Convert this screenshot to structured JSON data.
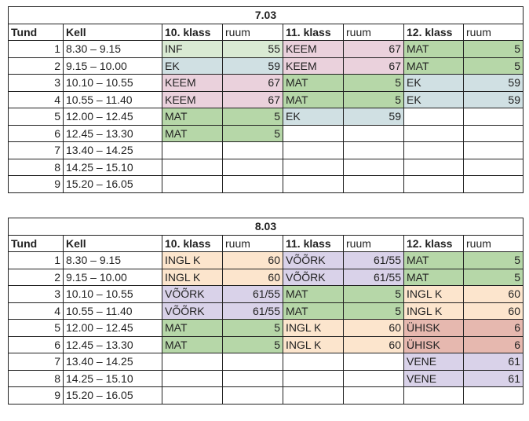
{
  "tables": [
    {
      "date": "7.03",
      "header": {
        "tund": "Tund",
        "kell": "Kell",
        "k10": "10. klass",
        "k11": "11. klass",
        "k12": "12. klass",
        "ruum": "ruum"
      },
      "rows": [
        {
          "tund": "1",
          "kell": "8.30 – 9.15",
          "s10": "INF",
          "r10": "55",
          "s11": "KEEM",
          "r11": "67",
          "s12": "MAT",
          "r12": "5"
        },
        {
          "tund": "2",
          "kell": "9.15 – 10.00",
          "s10": "EK",
          "r10": "59",
          "s11": "KEEM",
          "r11": "67",
          "s12": "MAT",
          "r12": "5"
        },
        {
          "tund": "3",
          "kell": "10.10 – 10.55",
          "s10": "KEEM",
          "r10": "67",
          "s11": "MAT",
          "r11": "5",
          "s12": "EK",
          "r12": "59"
        },
        {
          "tund": "4",
          "kell": "10.55 – 11.40",
          "s10": "KEEM",
          "r10": "67",
          "s11": "MAT",
          "r11": "5",
          "s12": "EK",
          "r12": "59"
        },
        {
          "tund": "5",
          "kell": "12.00 – 12.45",
          "s10": "MAT",
          "r10": "5",
          "s11": "EK",
          "r11": "59",
          "s12": "",
          "r12": ""
        },
        {
          "tund": "6",
          "kell": "12.45 – 13.30",
          "s10": "MAT",
          "r10": "5",
          "s11": "",
          "r11": "",
          "s12": "",
          "r12": ""
        },
        {
          "tund": "7",
          "kell": "13.40 – 14.25",
          "s10": "",
          "r10": "",
          "s11": "",
          "r11": "",
          "s12": "",
          "r12": ""
        },
        {
          "tund": "8",
          "kell": "14.25 – 15.10",
          "s10": "",
          "r10": "",
          "s11": "",
          "r11": "",
          "s12": "",
          "r12": ""
        },
        {
          "tund": "9",
          "kell": "15.20 – 16.05",
          "s10": "",
          "r10": "",
          "s11": "",
          "r11": "",
          "s12": "",
          "r12": ""
        }
      ]
    },
    {
      "date": "8.03",
      "header": {
        "tund": "Tund",
        "kell": "Kell",
        "k10": "10. klass",
        "k11": "11. klass",
        "k12": "12. klass",
        "ruum": "ruum"
      },
      "rows": [
        {
          "tund": "1",
          "kell": "8.30 – 9.15",
          "s10": "INGL K",
          "r10": "60",
          "s11": "VÕÕRK",
          "r11": "61/55",
          "s12": "MAT",
          "r12": "5"
        },
        {
          "tund": "2",
          "kell": "9.15 – 10.00",
          "s10": "INGL K",
          "r10": "60",
          "s11": "VÕÕRK",
          "r11": "61/55",
          "s12": "MAT",
          "r12": "5"
        },
        {
          "tund": "3",
          "kell": "10.10 – 10.55",
          "s10": "VÕÕRK",
          "r10": "61/55",
          "s11": "MAT",
          "r11": "5",
          "s12": "INGL K",
          "r12": "60"
        },
        {
          "tund": "4",
          "kell": "10.55 – 11.40",
          "s10": "VÕÕRK",
          "r10": "61/55",
          "s11": "MAT",
          "r11": "5",
          "s12": "INGL K",
          "r12": "60"
        },
        {
          "tund": "5",
          "kell": "12.00 – 12.45",
          "s10": "MAT",
          "r10": "5",
          "s11": "INGL K",
          "r11": "60",
          "s12": "ÜHISK",
          "r12": "6"
        },
        {
          "tund": "6",
          "kell": "12.45 – 13.30",
          "s10": "MAT",
          "r10": "5",
          "s11": "INGL K",
          "r11": "60",
          "s12": "ÜHISK",
          "r12": "6"
        },
        {
          "tund": "7",
          "kell": "13.40 – 14.25",
          "s10": "",
          "r10": "",
          "s11": "",
          "r11": "",
          "s12": "VENE",
          "r12": "61"
        },
        {
          "tund": "8",
          "kell": "14.25 – 15.10",
          "s10": "",
          "r10": "",
          "s11": "",
          "r11": "",
          "s12": "VENE",
          "r12": "61"
        },
        {
          "tund": "9",
          "kell": "15.20 – 16.05",
          "s10": "",
          "r10": "",
          "s11": "",
          "r11": "",
          "s12": "",
          "r12": ""
        }
      ]
    }
  ],
  "subject_colors": {
    "INF": "#d9ead3",
    "EK": "#d0e0e3",
    "KEEM": "#ead1dc",
    "MAT": "#b6d7a8",
    "INGL K": "#fce5cd",
    "VÕÕRK": "#d9d2e9",
    "ÜHISK": "#e6b8af",
    "VENE": "#d9d2e9"
  }
}
